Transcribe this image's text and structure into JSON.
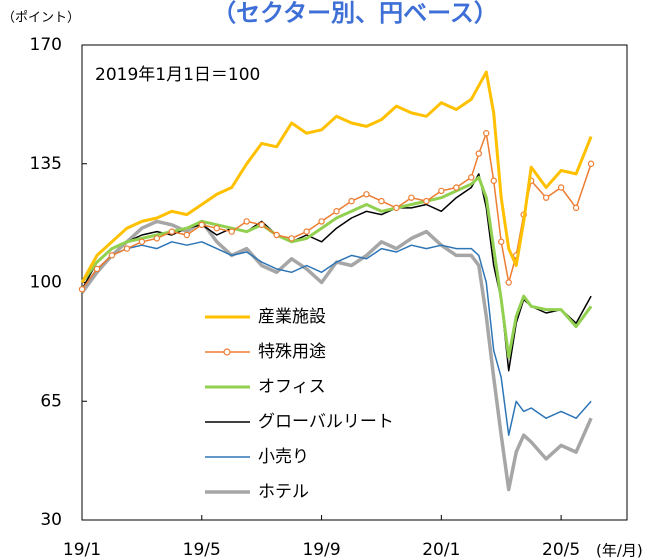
{
  "chart_data": {
    "type": "line",
    "title": "（セクター別、円ベース）",
    "y_axis_label": "（ポイント）",
    "x_axis_label": "(年/月)",
    "annotation": "2019年1月1日＝100",
    "x": [
      0,
      0.5,
      1,
      1.5,
      2,
      2.5,
      3,
      3.5,
      4,
      4.5,
      5,
      5.5,
      6,
      6.5,
      7,
      7.5,
      8,
      8.5,
      9,
      9.5,
      10,
      10.5,
      11,
      11.5,
      12,
      12.5,
      13,
      13.25,
      13.5,
      13.75,
      14,
      14.25,
      14.5,
      14.75,
      15,
      15.5,
      16,
      16.5,
      17
    ],
    "xlim": [
      0,
      18.2
    ],
    "xticks": [
      {
        "value": 0,
        "label": "19/1"
      },
      {
        "value": 4,
        "label": "19/5"
      },
      {
        "value": 8,
        "label": "19/9"
      },
      {
        "value": 12,
        "label": "20/1"
      },
      {
        "value": 16,
        "label": "20/5"
      }
    ],
    "ylim": [
      30,
      170
    ],
    "yticks": [
      30,
      65,
      100,
      135,
      170
    ],
    "series": [
      {
        "name": "産業施設",
        "color": "#ffc000",
        "values": [
          100,
          108,
          112,
          116,
          118,
          119,
          121,
          120,
          123,
          126,
          128,
          135,
          141,
          140,
          147,
          144,
          145,
          149,
          147,
          146,
          148,
          152,
          150,
          149,
          153,
          151,
          154,
          158,
          162,
          150,
          125,
          110,
          105,
          118,
          134,
          128,
          133,
          132,
          143
        ]
      },
      {
        "name": "特殊用途",
        "color": "#ed7d31",
        "markers": true,
        "values": [
          98,
          104,
          108,
          110,
          112,
          113,
          115,
          114,
          117,
          116,
          115,
          118,
          117,
          114,
          113,
          115,
          118,
          121,
          124,
          126,
          124,
          122,
          125,
          124,
          127,
          128,
          131,
          138,
          144,
          130,
          112,
          100,
          108,
          120,
          130,
          125,
          128,
          122,
          135
        ]
      },
      {
        "name": "オフィス",
        "color": "#92d050",
        "values": [
          100,
          106,
          110,
          112,
          113,
          114,
          115,
          116,
          118,
          117,
          116,
          115,
          117,
          114,
          112,
          113,
          116,
          119,
          121,
          123,
          121,
          122,
          123,
          124,
          125,
          127,
          129,
          131,
          125,
          110,
          95,
          78,
          90,
          96,
          93,
          92,
          92,
          87,
          93
        ]
      },
      {
        "name": "グローバルリート",
        "color": "#000000",
        "values": [
          98,
          106,
          110,
          112,
          114,
          115,
          114,
          116,
          117,
          114,
          116,
          115,
          118,
          114,
          112,
          114,
          112,
          116,
          119,
          121,
          120,
          122,
          122,
          123,
          121,
          125,
          128,
          132,
          122,
          105,
          95,
          74,
          88,
          95,
          93,
          91,
          92,
          88,
          96
        ]
      },
      {
        "name": "小売り",
        "color": "#2e75b6",
        "values": [
          98,
          104,
          108,
          110,
          111,
          110,
          112,
          111,
          112,
          110,
          108,
          109,
          106,
          104,
          103,
          105,
          103,
          106,
          108,
          107,
          110,
          109,
          111,
          110,
          111,
          110,
          110,
          108,
          100,
          80,
          72,
          55,
          65,
          62,
          63,
          60,
          62,
          60,
          65
        ]
      },
      {
        "name": "ホテル",
        "color": "#a6a6a6",
        "values": [
          97,
          103,
          108,
          112,
          116,
          118,
          117,
          115,
          118,
          112,
          108,
          110,
          105,
          103,
          107,
          104,
          100,
          106,
          105,
          108,
          112,
          110,
          113,
          115,
          111,
          108,
          108,
          105,
          90,
          72,
          55,
          39,
          50,
          55,
          53,
          48,
          52,
          50,
          60
        ]
      }
    ]
  }
}
